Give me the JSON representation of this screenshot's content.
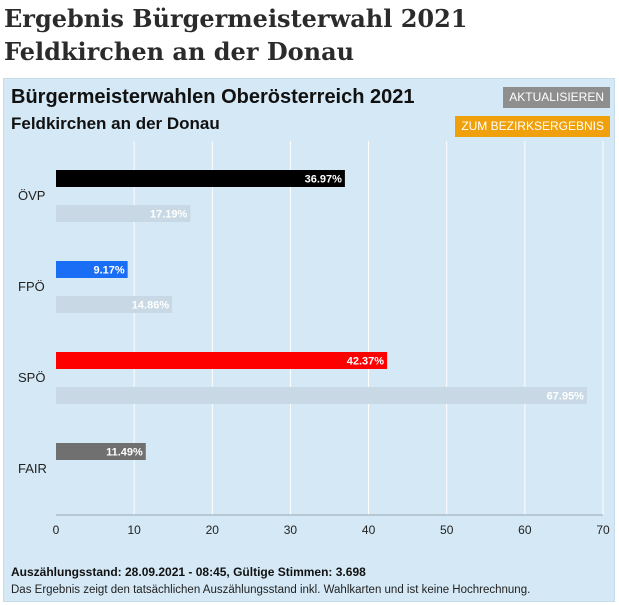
{
  "page": {
    "title": "Ergebnis Bürgermeisterwahl 2021 Feldkirchen an der Donau"
  },
  "widget": {
    "title": "Bürgermeisterwahlen Oberösterreich 2021",
    "subtitle": "Feldkirchen an der Donau",
    "update_button": "AKTUALISIEREN",
    "district_button": "ZUM BEZIRKSERGEBNIS",
    "count_status": "Auszählungsstand: 28.09.2021 - 08:45, Gültige Stimmen: 3.698",
    "note": "Das Ergebnis zeigt den tatsächlichen Auszählungsstand inkl. Wahlkarten und ist keine Hochrechnung."
  },
  "chart_data": {
    "type": "bar",
    "orientation": "horizontal",
    "categories": [
      "ÖVP",
      "FPÖ",
      "SPÖ",
      "FAIR"
    ],
    "series": [
      {
        "values": [
          36.97,
          9.17,
          42.37,
          11.49
        ],
        "labels": [
          "36.97%",
          "9.17%",
          "42.37%",
          "11.49%"
        ],
        "colors": [
          "#000000",
          "#1a6ef5",
          "#ff0000",
          "#707070"
        ]
      },
      {
        "values": [
          17.19,
          14.86,
          67.95,
          null
        ],
        "labels": [
          "17.19%",
          "14.86%",
          "67.95%",
          ""
        ],
        "color": "#c8d9e5"
      }
    ],
    "xlim": [
      0,
      70
    ],
    "xticks": [
      0,
      10,
      20,
      30,
      40,
      50,
      60,
      70
    ],
    "grid": true,
    "legend": "none"
  }
}
